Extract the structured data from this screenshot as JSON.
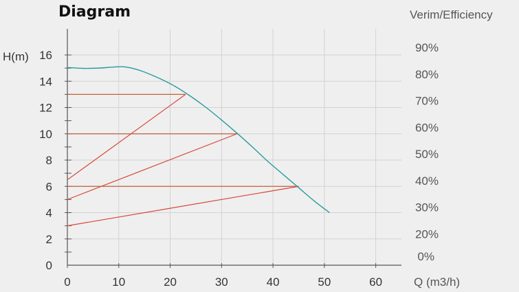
{
  "chart_data": {
    "type": "line",
    "title": "Diagram",
    "ylabel": "H(m)",
    "y2label": "Verim/Efficiency",
    "xlabel": "Q (m3/h)",
    "xlim": [
      0,
      65
    ],
    "ylim": [
      0,
      16
    ],
    "y2lim": [
      0,
      90
    ],
    "x_ticks": [
      "0",
      "10",
      "20",
      "30",
      "40",
      "50",
      "60"
    ],
    "y_ticks": [
      "0",
      "2",
      "4",
      "6",
      "8",
      "10",
      "12",
      "14",
      "16"
    ],
    "y2_ticks": [
      "0%",
      "20%",
      "30%",
      "40%",
      "50%",
      "60%",
      "70%",
      "80%",
      "90%"
    ],
    "grid": true,
    "colors": {
      "pump_curve": "#2a9a9c",
      "operating_lines": "#d84535",
      "guide_lines": "#c0603c",
      "grid": "#d2d2d2"
    },
    "series": [
      {
        "kind": "curve",
        "x": [
          0,
          3,
          6,
          9,
          11,
          13,
          15,
          18,
          21,
          24,
          27,
          30,
          33,
          36,
          39,
          42,
          45,
          48,
          51
        ],
        "y": [
          15.05,
          14.98,
          15.0,
          15.08,
          15.1,
          14.95,
          14.7,
          14.2,
          13.6,
          12.85,
          12.0,
          11.05,
          10.05,
          9.0,
          7.9,
          6.9,
          5.9,
          4.9,
          4.0
        ]
      },
      {
        "kind": "operating",
        "x": [
          0,
          23
        ],
        "y": [
          6.5,
          13
        ],
        "guide_y": 13
      },
      {
        "kind": "operating",
        "x": [
          0,
          33
        ],
        "y": [
          5.0,
          10
        ],
        "guide_y": 10
      },
      {
        "kind": "operating",
        "x": [
          0,
          45
        ],
        "y": [
          3.0,
          6
        ],
        "guide_y": 6
      }
    ]
  }
}
